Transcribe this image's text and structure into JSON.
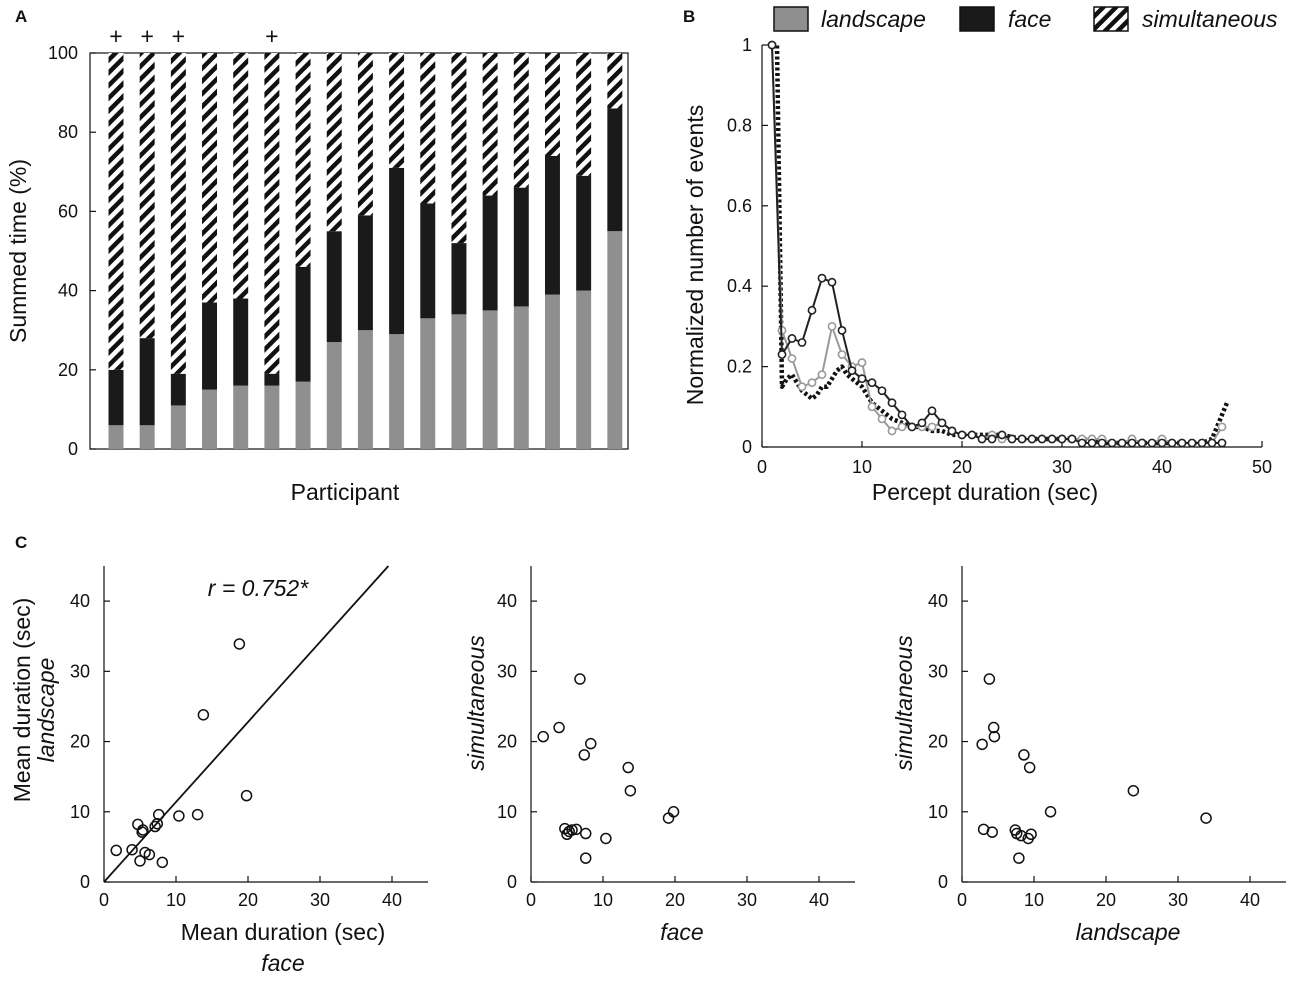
{
  "figure": {
    "panel_labels": [
      "A",
      "B",
      "C"
    ]
  },
  "colors": {
    "landscape": "#8f8f8f",
    "face": "#1a1a1a",
    "axis": "#111111",
    "landscape_line": "#9a9a9a",
    "face_line": "#222222"
  },
  "chart_data": [
    {
      "id": "A",
      "type": "bar",
      "stacked": true,
      "title": "",
      "xlabel": "Participant",
      "ylabel": "Summed time (%)",
      "ylim": [
        0,
        100
      ],
      "yticks": [
        0,
        20,
        40,
        60,
        80,
        100
      ],
      "marker_symbol": "+",
      "marked_participants": [
        1,
        2,
        3,
        6
      ],
      "series": [
        {
          "name": "landscape",
          "values": [
            6,
            6,
            11,
            15,
            16,
            16,
            17,
            27,
            30,
            29,
            33,
            34,
            35,
            36,
            39,
            40,
            55
          ]
        },
        {
          "name": "face",
          "values": [
            14,
            22,
            8,
            22,
            22,
            3,
            29,
            28,
            29,
            42,
            29,
            18,
            29,
            30,
            35,
            29,
            31
          ]
        },
        {
          "name": "simultaneous",
          "values": [
            80,
            72,
            81,
            63,
            62,
            81,
            54,
            45,
            41,
            29,
            38,
            48,
            36,
            34,
            26,
            31,
            14
          ]
        }
      ]
    },
    {
      "id": "B",
      "type": "line",
      "title": "",
      "xlabel": "Percept duration (sec)",
      "ylabel": "Normalized number of events",
      "xlim": [
        0,
        50
      ],
      "ylim": [
        0,
        1
      ],
      "xticks": [
        0,
        10,
        20,
        30,
        40,
        50
      ],
      "yticks": [
        0,
        0.2,
        0.4,
        0.6,
        0.8,
        1
      ],
      "ytick_labels": [
        "0",
        "0.2",
        "0.4",
        "0.6",
        "0.8",
        "1"
      ],
      "legend": [
        "landscape",
        "face",
        "simultaneous"
      ],
      "legend_position": "top",
      "series": [
        {
          "name": "landscape",
          "x": [
            1,
            2,
            3,
            4,
            5,
            6,
            7,
            8,
            9,
            10,
            11,
            12,
            13,
            14,
            15,
            16,
            17,
            18,
            19,
            20,
            21,
            22,
            23,
            24,
            25,
            26,
            27,
            28,
            29,
            30,
            31,
            32,
            33,
            34,
            35,
            36,
            37,
            38,
            39,
            40,
            41,
            42,
            43,
            44,
            45,
            46
          ],
          "y": [
            1,
            0.29,
            0.22,
            0.15,
            0.16,
            0.18,
            0.3,
            0.23,
            0.2,
            0.21,
            0.1,
            0.07,
            0.04,
            0.05,
            0.05,
            0.05,
            0.05,
            0.06,
            0.04,
            0.03,
            0.03,
            0.02,
            0.03,
            0.02,
            0.02,
            0.02,
            0.02,
            0.02,
            0.02,
            0.02,
            0.02,
            0.02,
            0.02,
            0.02,
            0.01,
            0.01,
            0.02,
            0.01,
            0.01,
            0.02,
            0.01,
            0.01,
            0.01,
            0.01,
            0.01,
            0.05
          ]
        },
        {
          "name": "face",
          "x": [
            1,
            2,
            3,
            4,
            5,
            6,
            7,
            8,
            9,
            10,
            11,
            12,
            13,
            14,
            15,
            16,
            17,
            18,
            19,
            20,
            21,
            22,
            23,
            24,
            25,
            26,
            27,
            28,
            29,
            30,
            31,
            32,
            33,
            34,
            35,
            36,
            37,
            38,
            39,
            40,
            41,
            42,
            43,
            44,
            45,
            46
          ],
          "y": [
            1,
            0.23,
            0.27,
            0.26,
            0.34,
            0.42,
            0.41,
            0.29,
            0.19,
            0.17,
            0.16,
            0.14,
            0.11,
            0.08,
            0.05,
            0.06,
            0.09,
            0.06,
            0.04,
            0.03,
            0.03,
            0.02,
            0.02,
            0.03,
            0.02,
            0.02,
            0.02,
            0.02,
            0.02,
            0.02,
            0.02,
            0.01,
            0.01,
            0.01,
            0.01,
            0.01,
            0.01,
            0.01,
            0.01,
            0.01,
            0.01,
            0.01,
            0.01,
            0.01,
            0.01,
            0.01
          ]
        },
        {
          "name": "simultaneous",
          "x": [
            1,
            1.5,
            2,
            2.5,
            3,
            3.5,
            4,
            4.5,
            5,
            5.5,
            6,
            6.5,
            7,
            7.5,
            8,
            8.5,
            9,
            9.5,
            10,
            10.5,
            11,
            11.5,
            12,
            12.5,
            13,
            14,
            15,
            16,
            17,
            18,
            19,
            20,
            22,
            24,
            26,
            28,
            30,
            32,
            34,
            36,
            38,
            40,
            42,
            44,
            45,
            45.5,
            46,
            46.5
          ],
          "y": [
            1,
            1,
            0.15,
            0.17,
            0.18,
            0.16,
            0.14,
            0.13,
            0.12,
            0.13,
            0.15,
            0.15,
            0.17,
            0.19,
            0.2,
            0.18,
            0.17,
            0.16,
            0.15,
            0.13,
            0.11,
            0.1,
            0.09,
            0.08,
            0.07,
            0.06,
            0.05,
            0.05,
            0.04,
            0.04,
            0.03,
            0.03,
            0.03,
            0.03,
            0.02,
            0.02,
            0.02,
            0.02,
            0.01,
            0.01,
            0.01,
            0.01,
            0.01,
            0.01,
            0.02,
            0.05,
            0.08,
            0.11
          ]
        }
      ]
    },
    {
      "id": "C1",
      "type": "scatter",
      "title": "",
      "xlabel": "Mean duration (sec)",
      "xlabel2": "face",
      "ylabel": "Mean duration (sec)",
      "ylabel2": "landscape",
      "xlim": [
        0,
        45
      ],
      "ylim": [
        0,
        45
      ],
      "xticks": [
        0,
        10,
        20,
        30,
        40
      ],
      "yticks": [
        0,
        10,
        20,
        30,
        40
      ],
      "annotation": "r = 0.752*",
      "fit_line": [
        [
          0,
          0
        ],
        [
          39.5,
          45
        ]
      ],
      "x": [
        1.7,
        3.9,
        4.7,
        5.0,
        5.3,
        5.7,
        5.4,
        6.3,
        7.1,
        7.4,
        7.6,
        8.1,
        10.4,
        13.0,
        13.8,
        18.8,
        19.8
      ],
      "y": [
        4.5,
        4.6,
        8.2,
        3.0,
        7.1,
        4.2,
        7.4,
        3.9,
        7.9,
        8.3,
        9.6,
        2.8,
        9.4,
        9.6,
        23.8,
        33.9,
        12.3
      ]
    },
    {
      "id": "C2",
      "type": "scatter",
      "title": "",
      "xlabel": "face",
      "ylabel": "simultaneous",
      "xlim": [
        0,
        45
      ],
      "ylim": [
        0,
        45
      ],
      "xticks": [
        0,
        10,
        20,
        30,
        40
      ],
      "yticks": [
        0,
        10,
        20,
        30,
        40
      ],
      "x": [
        1.7,
        3.9,
        4.7,
        5.0,
        5.3,
        5.7,
        6.3,
        6.8,
        7.4,
        7.6,
        7.6,
        8.3,
        10.4,
        13.5,
        13.8,
        19.1,
        19.8
      ],
      "y": [
        20.7,
        22.0,
        7.6,
        6.8,
        7.2,
        7.4,
        7.5,
        28.9,
        18.1,
        3.4,
        6.9,
        19.7,
        6.2,
        16.3,
        13.0,
        9.1,
        10.0
      ]
    },
    {
      "id": "C3",
      "type": "scatter",
      "title": "",
      "xlabel": "landscape",
      "ylabel": "simultaneous",
      "xlim": [
        0,
        45
      ],
      "ylim": [
        0,
        45
      ],
      "xticks": [
        0,
        10,
        20,
        30,
        40
      ],
      "yticks": [
        0,
        10,
        20,
        30,
        40
      ],
      "x": [
        2.8,
        3.0,
        3.8,
        4.2,
        4.4,
        4.5,
        7.4,
        7.6,
        7.9,
        8.2,
        8.6,
        9.2,
        9.4,
        9.6,
        12.3,
        23.8,
        33.9
      ],
      "y": [
        19.6,
        7.5,
        28.9,
        7.1,
        22.0,
        20.7,
        7.4,
        6.9,
        3.4,
        6.6,
        18.1,
        6.2,
        16.3,
        6.8,
        10.0,
        13.0,
        9.1
      ]
    }
  ]
}
